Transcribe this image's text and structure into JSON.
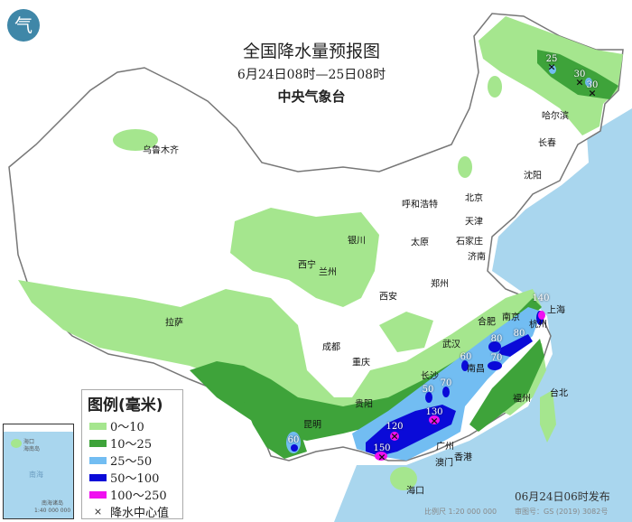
{
  "header": {
    "title": "全国降水量预报图",
    "period": "6月24日08时—25日08时",
    "issuer": "中央气象台"
  },
  "legend": {
    "title": "图例(毫米)",
    "items": [
      {
        "label": "0～10",
        "color": "#a5e68e"
      },
      {
        "label": "10～25",
        "color": "#3ea33a"
      },
      {
        "label": "25～50",
        "color": "#72bdf2"
      },
      {
        "label": "50～100",
        "color": "#0a0ad8"
      },
      {
        "label": "100～250",
        "color": "#f010f0"
      }
    ],
    "center_label": "降水中心值",
    "center_symbol": "×"
  },
  "cities": [
    "乌鲁木齐",
    "哈尔滨",
    "长春",
    "沈阳",
    "北京",
    "天津",
    "呼和浩特",
    "石家庄",
    "太原",
    "济南",
    "银川",
    "西宁",
    "兰州",
    "西安",
    "郑州",
    "合肥",
    "南京",
    "上海",
    "杭州",
    "武汉",
    "成都",
    "重庆",
    "长沙",
    "南昌",
    "拉萨",
    "贵阳",
    "福州",
    "台北",
    "昆明",
    "广州",
    "香港",
    "澳门",
    "海口"
  ],
  "precip_centers": [
    "25",
    "30",
    "30",
    "140",
    "80",
    "80",
    "60",
    "70",
    "50",
    "70",
    "130",
    "120",
    "150",
    "60"
  ],
  "inset": {
    "sea": "南海",
    "island": "海南岛",
    "city": "海口",
    "islands": "南海诸岛",
    "scale": "1:40 000 000"
  },
  "footer": {
    "published": "06月24日06时发布",
    "scale": "比例尺 1:20 000 000",
    "approval": "审图号：GS (2019) 3082号"
  },
  "logo": "气"
}
